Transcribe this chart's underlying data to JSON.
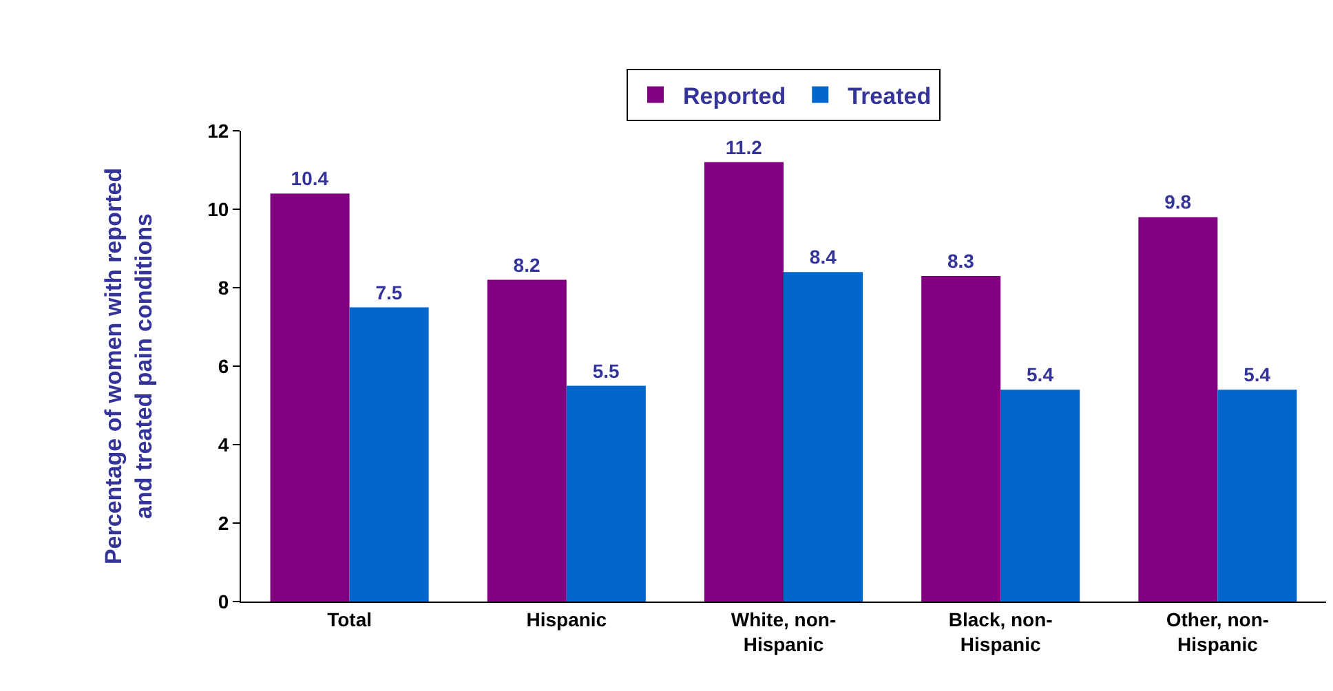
{
  "chart_data": {
    "type": "bar",
    "categories": [
      "Total",
      "Hispanic",
      "White, non-\nHispanic",
      "Black, non-\nHispanic",
      "Other, non-\nHispanic"
    ],
    "series": [
      {
        "name": "Reported",
        "color": "#800080",
        "values": [
          10.4,
          8.2,
          11.2,
          8.3,
          9.8
        ]
      },
      {
        "name": "Treated",
        "color": "#0066cc",
        "values": [
          7.5,
          5.5,
          8.4,
          5.4,
          5.4
        ]
      }
    ],
    "ylabel": "Percentage of women with reported\nand treated pain conditions",
    "ylim": [
      0,
      12
    ],
    "yticks": [
      0,
      2,
      4,
      6,
      8,
      10,
      12
    ],
    "grid": false,
    "legend": "top",
    "data_labels": true
  }
}
